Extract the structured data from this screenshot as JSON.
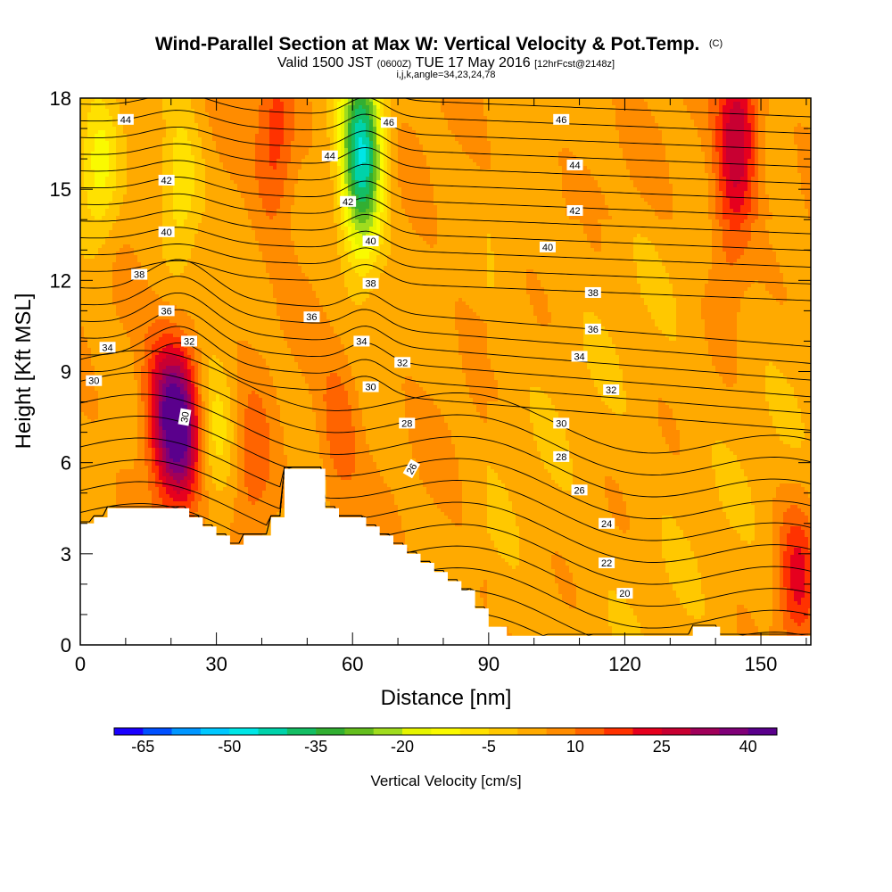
{
  "header": {
    "title": "Wind-Parallel Section at Max W: Vertical Velocity & Pot.Temp.",
    "title_tag": "(C)",
    "valid_a": "Valid 1500 JST",
    "valid_b": "(0600Z)",
    "valid_c": "TUE 17 May 2016",
    "valid_d": "[12hrFcst@2148z]",
    "params": "i,j,k,angle=34,23,24,78"
  },
  "chart_data": {
    "type": "heatmap",
    "title": "Wind-Parallel Section at Max W: Vertical Velocity & Pot.Temp.",
    "xlabel": "Distance [nm]",
    "ylabel": "Height [Kft MSL]",
    "xlim": [
      0,
      161
    ],
    "ylim": [
      0,
      18
    ],
    "x_ticks": [
      0,
      30,
      60,
      90,
      120,
      150
    ],
    "y_ticks": [
      0,
      3,
      6,
      9,
      12,
      15,
      18
    ],
    "colorbar": {
      "label": "Vertical Velocity [cm/s]",
      "tick_values": [
        "-65",
        "-50",
        "-35",
        "-20",
        "-5",
        "10",
        "25",
        "40"
      ],
      "colors": [
        "#1a00ff",
        "#0050ff",
        "#0096ff",
        "#00c8ff",
        "#00e6e6",
        "#00d2aa",
        "#14be64",
        "#32af32",
        "#64be1e",
        "#a0dc1e",
        "#e6f500",
        "#fafa00",
        "#ffe100",
        "#ffc800",
        "#ffaa00",
        "#ff8c00",
        "#ff6400",
        "#ff3200",
        "#e6001e",
        "#c80032",
        "#a0005a",
        "#800078",
        "#5a008c"
      ]
    },
    "w_features": [
      {
        "x": 22,
        "z": 7.2,
        "value": 36,
        "sign": "updraft"
      },
      {
        "x": 18,
        "z": 7.8,
        "value": 18,
        "sign": "updraft"
      },
      {
        "x": 43,
        "z": 16.5,
        "value": 15,
        "sign": "updraft"
      },
      {
        "x": 38,
        "z": 5.5,
        "value": 10,
        "sign": "updraft"
      },
      {
        "x": 57,
        "z": 7.0,
        "value": 10,
        "sign": "updraft"
      },
      {
        "x": 62,
        "z": 17.0,
        "value": -35,
        "sign": "downdraft"
      },
      {
        "x": 62,
        "z": 14.5,
        "value": -25,
        "sign": "downdraft"
      },
      {
        "x": 22,
        "z": 15.0,
        "value": -15,
        "sign": "downdraft"
      },
      {
        "x": 4,
        "z": 15.5,
        "value": -15,
        "sign": "downdraft"
      },
      {
        "x": 30,
        "z": 7.0,
        "value": -12,
        "sign": "downdraft"
      },
      {
        "x": 145,
        "z": 17.0,
        "value": 25,
        "sign": "updraft"
      },
      {
        "x": 158,
        "z": 2.0,
        "value": 18,
        "sign": "updraft"
      },
      {
        "x": 143,
        "z": 13.5,
        "value": 10,
        "sign": "updraft"
      }
    ],
    "theta_contour_labels": [
      {
        "text": "44",
        "x": 10,
        "z": 17.3
      },
      {
        "text": "46",
        "x": 68,
        "z": 17.2
      },
      {
        "text": "46",
        "x": 106,
        "z": 17.3
      },
      {
        "text": "44",
        "x": 55,
        "z": 16.1
      },
      {
        "text": "44",
        "x": 109,
        "z": 15.8
      },
      {
        "text": "42",
        "x": 19,
        "z": 15.3
      },
      {
        "text": "42",
        "x": 59,
        "z": 14.6
      },
      {
        "text": "42",
        "x": 109,
        "z": 14.3
      },
      {
        "text": "40",
        "x": 19,
        "z": 13.6
      },
      {
        "text": "40",
        "x": 64,
        "z": 13.3
      },
      {
        "text": "40",
        "x": 103,
        "z": 13.1
      },
      {
        "text": "38",
        "x": 13,
        "z": 12.2
      },
      {
        "text": "38",
        "x": 64,
        "z": 11.9
      },
      {
        "text": "38",
        "x": 113,
        "z": 11.6
      },
      {
        "text": "36",
        "x": 19,
        "z": 11.0
      },
      {
        "text": "36",
        "x": 51,
        "z": 10.8
      },
      {
        "text": "36",
        "x": 113,
        "z": 10.4
      },
      {
        "text": "34",
        "x": 6,
        "z": 9.8
      },
      {
        "text": "34",
        "x": 62,
        "z": 10.0
      },
      {
        "text": "34",
        "x": 110,
        "z": 9.5
      },
      {
        "text": "32",
        "x": 24,
        "z": 10.0
      },
      {
        "text": "32",
        "x": 71,
        "z": 9.3
      },
      {
        "text": "32",
        "x": 117,
        "z": 8.4
      },
      {
        "text": "30",
        "x": 3,
        "z": 8.7
      },
      {
        "text": "30",
        "x": 64,
        "z": 8.5
      },
      {
        "text": "30",
        "x": 106,
        "z": 7.3
      },
      {
        "text": "30",
        "x": 23,
        "z": 7.5,
        "rotate": -80
      },
      {
        "text": "28",
        "x": 72,
        "z": 7.3
      },
      {
        "text": "28",
        "x": 106,
        "z": 6.2
      },
      {
        "text": "26",
        "x": 73,
        "z": 5.8,
        "rotate": -60
      },
      {
        "text": "26",
        "x": 110,
        "z": 5.1
      },
      {
        "text": "24",
        "x": 116,
        "z": 4.0
      },
      {
        "text": "22",
        "x": 116,
        "z": 2.7
      },
      {
        "text": "20",
        "x": 120,
        "z": 1.7
      }
    ],
    "terrain_top": [
      [
        0,
        4.0
      ],
      [
        3,
        4.0
      ],
      [
        3,
        4.2
      ],
      [
        6,
        4.2
      ],
      [
        6,
        4.5
      ],
      [
        24,
        4.5
      ],
      [
        24,
        4.2
      ],
      [
        27,
        4.2
      ],
      [
        27,
        3.9
      ],
      [
        30,
        3.9
      ],
      [
        30,
        3.6
      ],
      [
        33,
        3.6
      ],
      [
        33,
        3.3
      ],
      [
        36,
        3.3
      ],
      [
        36,
        3.6
      ],
      [
        42,
        3.6
      ],
      [
        42,
        4.2
      ],
      [
        45,
        4.2
      ],
      [
        45,
        4.5
      ],
      [
        45,
        5.8
      ],
      [
        54,
        5.8
      ],
      [
        54,
        4.5
      ],
      [
        57,
        4.5
      ],
      [
        57,
        4.2
      ],
      [
        63,
        4.2
      ],
      [
        63,
        3.9
      ],
      [
        66,
        3.9
      ],
      [
        66,
        3.6
      ],
      [
        69,
        3.6
      ],
      [
        69,
        3.3
      ],
      [
        72,
        3.3
      ],
      [
        72,
        3.0
      ],
      [
        75,
        3.0
      ],
      [
        75,
        2.7
      ],
      [
        78,
        2.7
      ],
      [
        78,
        2.4
      ],
      [
        81,
        2.4
      ],
      [
        81,
        2.1
      ],
      [
        84,
        2.1
      ],
      [
        84,
        1.8
      ],
      [
        87,
        1.8
      ],
      [
        87,
        1.2
      ],
      [
        90,
        1.2
      ],
      [
        90,
        0.6
      ],
      [
        94,
        0.6
      ],
      [
        94,
        0.3
      ],
      [
        135,
        0.3
      ],
      [
        135,
        0.6
      ],
      [
        141,
        0.6
      ],
      [
        141,
        0.3
      ],
      [
        161,
        0.3
      ]
    ]
  }
}
